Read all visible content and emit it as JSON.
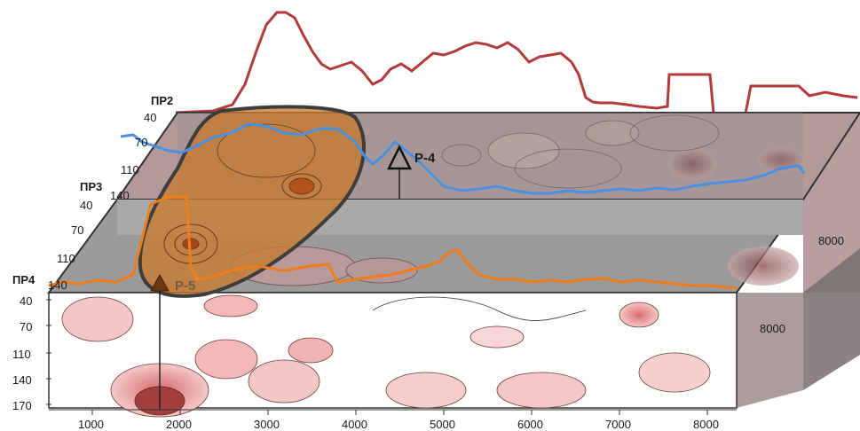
{
  "profiles": [
    {
      "id": "pr2",
      "label": "ПР2",
      "depth_ticks": [
        "40",
        "70",
        "110",
        "140"
      ]
    },
    {
      "id": "pr3",
      "label": "ПР3",
      "depth_ticks": [
        "40",
        "70",
        "110",
        "140"
      ]
    },
    {
      "id": "pr4",
      "label": "ПР4",
      "depth_ticks": [
        "40",
        "70",
        "110",
        "140",
        "170"
      ]
    }
  ],
  "x_axis": {
    "ticks": [
      "1000",
      "2000",
      "3000",
      "4000",
      "5000",
      "6000",
      "7000",
      "8000"
    ]
  },
  "side_labels": {
    "upper": "8000",
    "lower": "8000"
  },
  "wells": [
    {
      "id": "p4",
      "label": "Р-4",
      "marker": "open-triangle"
    },
    {
      "id": "p5",
      "label": "Р-5",
      "marker": "filled-triangle"
    }
  ],
  "colors": {
    "top_curve": "#b23a3a",
    "pr2_curve": "#4a8fe0",
    "pr3_curve": "#f07d1a",
    "anomaly_fill": "#c87a2e",
    "pr4_fill": "#f2b9b9",
    "panel_grey": "#8f8f8f"
  }
}
